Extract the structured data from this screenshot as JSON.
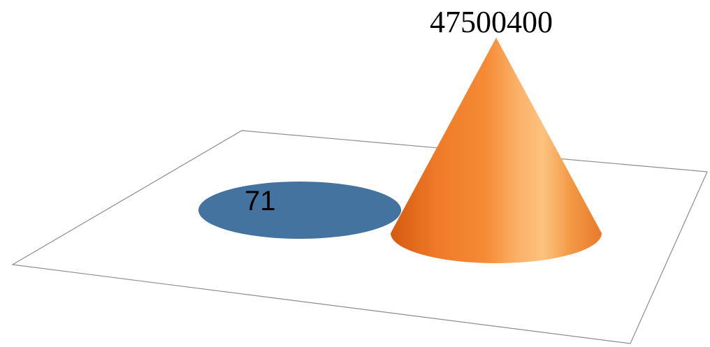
{
  "chart_data": {
    "type": "bar",
    "style": "3d-cone",
    "categories": [
      "",
      ""
    ],
    "values": [
      71,
      47500400
    ],
    "data_labels": [
      "71",
      "47500400"
    ],
    "colors": [
      "#44739f",
      "#f28a30"
    ],
    "title": "",
    "xlabel": "",
    "ylabel": "",
    "gridlines": false,
    "legend": "none"
  }
}
